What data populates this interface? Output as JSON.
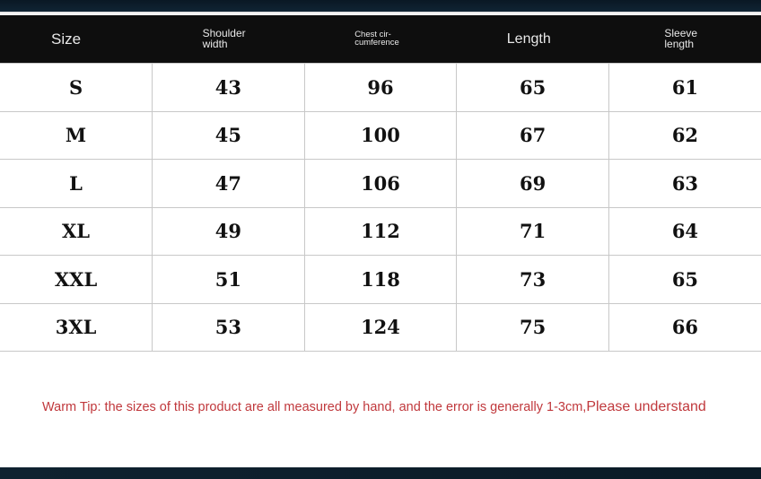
{
  "headers": [
    "Size",
    "Shoulder width",
    "Chest cir-cumference",
    "Length",
    "Sleeve length"
  ],
  "header_lines": {
    "size": "Size",
    "shoulder": [
      "Shoulder",
      "width"
    ],
    "chest": [
      "Chest cir-",
      "cumference"
    ],
    "length": "Length",
    "sleeve": [
      "Sleeve",
      "length"
    ]
  },
  "rows": [
    [
      "S",
      "43",
      "96",
      "65",
      "61"
    ],
    [
      "M",
      "45",
      "100",
      "67",
      "62"
    ],
    [
      "L",
      "47",
      "106",
      "69",
      "63"
    ],
    [
      "XL",
      "49",
      "112",
      "71",
      "64"
    ],
    [
      "XXL",
      "51",
      "118",
      "73",
      "65"
    ],
    [
      "3XL",
      "53",
      "124",
      "75",
      "66"
    ]
  ],
  "note": {
    "text": "Warm Tip: the sizes of this product are all measured by hand, and the error is generally 1-3cm,",
    "tail": "Please understand",
    "color": "#c0383c"
  }
}
